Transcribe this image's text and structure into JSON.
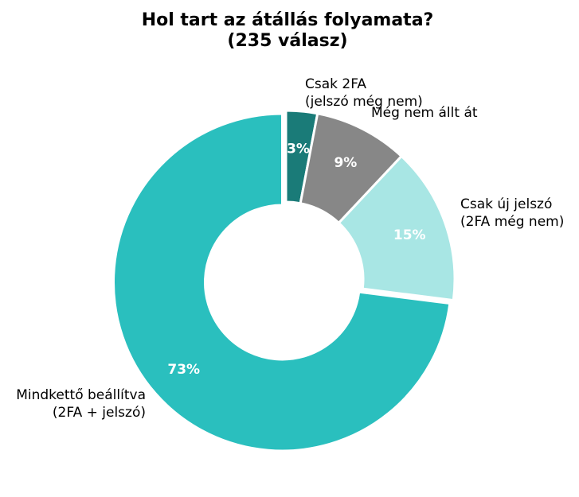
{
  "chart_data": {
    "type": "pie",
    "variant": "donut",
    "title_lines": [
      "Hol tart az átállás folyamata?",
      "(235 válasz)"
    ],
    "slices": [
      {
        "label_lines": [
          "Csak 2FA",
          "(jelszó még nem)"
        ],
        "value": 3,
        "pct_label": "3%",
        "color": "#1a7b78"
      },
      {
        "label_lines": [
          "Még nem állt át"
        ],
        "value": 9,
        "pct_label": "9%",
        "color": "#878787"
      },
      {
        "label_lines": [
          "Csak új jelszó",
          "(2FA még nem)"
        ],
        "value": 15,
        "pct_label": "15%",
        "color": "#a8e6e4"
      },
      {
        "label_lines": [
          "Mindkettő beállítva",
          "(2FA + jelszó)"
        ],
        "value": 73,
        "pct_label": "73%",
        "color": "#2abfbe"
      }
    ],
    "start_angle": "top",
    "direction": "clockwise",
    "legend": "none"
  }
}
